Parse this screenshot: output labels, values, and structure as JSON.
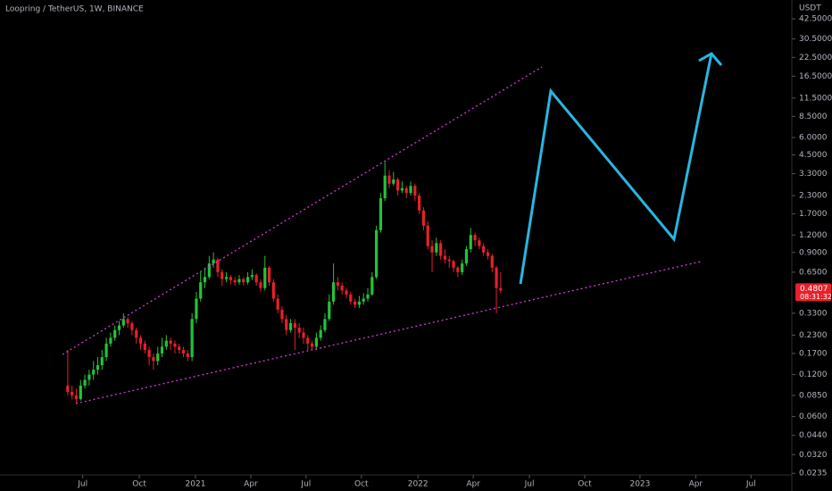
{
  "chart_data": {
    "type": "candlestick",
    "title": "Loopring / TetherUS, 1W, BINANCE",
    "y_axis_label": "USDT",
    "countdown": "08:31:32",
    "log_scale": true,
    "up_color": "#22c33a",
    "down_color": "#e8202a",
    "ylim": [
      0.0229,
      58
    ],
    "yticks": [
      {
        "value": 42.5,
        "label": "42.5000"
      },
      {
        "value": 30.5,
        "label": "30.5000"
      },
      {
        "value": 22.5,
        "label": "22.5000"
      },
      {
        "value": 16.5,
        "label": "16.5000"
      },
      {
        "value": 11.5,
        "label": "11.5000"
      },
      {
        "value": 8.5,
        "label": "8.5000"
      },
      {
        "value": 6,
        "label": "6.0000"
      },
      {
        "value": 4.5,
        "label": "4.5000"
      },
      {
        "value": 3.3,
        "label": "3.3000"
      },
      {
        "value": 2.3,
        "label": "2.3000"
      },
      {
        "value": 1.7,
        "label": "1.7000"
      },
      {
        "value": 1.2,
        "label": "1.2000"
      },
      {
        "value": 0.9,
        "label": "0.9000"
      },
      {
        "value": 0.65,
        "label": "0.6500"
      },
      {
        "value": 0.33,
        "label": "0.3300"
      },
      {
        "value": 0.23,
        "label": "0.2300"
      },
      {
        "value": 0.17,
        "label": "0.1700"
      },
      {
        "value": 0.12,
        "label": "0.1200"
      },
      {
        "value": 0.085,
        "label": "0.0850"
      },
      {
        "value": 0.06,
        "label": "0.0600"
      },
      {
        "value": 0.044,
        "label": "0.0440"
      },
      {
        "value": 0.032,
        "label": "0.0320"
      },
      {
        "value": 0.0235,
        "label": "0.0235"
      }
    ],
    "xlim": [
      -15.8,
      168.5
    ],
    "xticks": [
      {
        "value": 3.5,
        "label": "Jul"
      },
      {
        "value": 16.7,
        "label": "Oct"
      },
      {
        "value": 29.8,
        "label": "2021"
      },
      {
        "value": 42.7,
        "label": "Apr"
      },
      {
        "value": 55.6,
        "label": "Jul"
      },
      {
        "value": 68.5,
        "label": "Oct"
      },
      {
        "value": 81.7,
        "label": "2022"
      },
      {
        "value": 94.6,
        "label": "Apr"
      },
      {
        "value": 107.7,
        "label": "Jul"
      },
      {
        "value": 120.6,
        "label": "Oct"
      },
      {
        "value": 133.5,
        "label": "2023"
      },
      {
        "value": 146.5,
        "label": "Apr"
      },
      {
        "value": 159.4,
        "label": "Jul"
      }
    ],
    "open": [
      0.1,
      0.09,
      0.085,
      0.08,
      0.1,
      0.11,
      0.12,
      0.13,
      0.14,
      0.16,
      0.2,
      0.22,
      0.25,
      0.27,
      0.3,
      0.28,
      0.25,
      0.22,
      0.2,
      0.18,
      0.16,
      0.15,
      0.17,
      0.19,
      0.21,
      0.2,
      0.19,
      0.18,
      0.17,
      0.16,
      0.3,
      0.42,
      0.55,
      0.6,
      0.75,
      0.8,
      0.65,
      0.58,
      0.6,
      0.57,
      0.55,
      0.58,
      0.55,
      0.6,
      0.62,
      0.55,
      0.5,
      0.7,
      0.55,
      0.42,
      0.35,
      0.3,
      0.25,
      0.28,
      0.26,
      0.24,
      0.22,
      0.2,
      0.19,
      0.22,
      0.25,
      0.3,
      0.4,
      0.55,
      0.52,
      0.48,
      0.45,
      0.4,
      0.38,
      0.4,
      0.42,
      0.45,
      0.6,
      1.3,
      2.2,
      3.2,
      2.8,
      3.0,
      2.5,
      2.6,
      2.4,
      2.7,
      2.3,
      1.8,
      1.4,
      1.0,
      0.9,
      1.05,
      0.85,
      0.8,
      0.78,
      0.7,
      0.65,
      0.75,
      0.95,
      1.2,
      1.1,
      1.0,
      0.9,
      0.85,
      0.7,
      0.5
    ],
    "high": [
      0.18,
      0.1,
      0.095,
      0.11,
      0.12,
      0.13,
      0.15,
      0.16,
      0.18,
      0.22,
      0.24,
      0.27,
      0.29,
      0.33,
      0.31,
      0.29,
      0.26,
      0.23,
      0.21,
      0.19,
      0.17,
      0.19,
      0.22,
      0.23,
      0.22,
      0.21,
      0.2,
      0.19,
      0.18,
      0.33,
      0.47,
      0.65,
      0.7,
      0.85,
      0.9,
      0.82,
      0.68,
      0.65,
      0.62,
      0.6,
      0.62,
      0.6,
      0.65,
      0.68,
      0.64,
      0.58,
      0.85,
      0.72,
      0.58,
      0.45,
      0.37,
      0.32,
      0.3,
      0.3,
      0.28,
      0.26,
      0.23,
      0.21,
      0.24,
      0.27,
      0.33,
      0.45,
      0.75,
      0.6,
      0.55,
      0.5,
      0.47,
      0.42,
      0.44,
      0.46,
      0.5,
      0.65,
      1.4,
      2.4,
      4.0,
      3.5,
      3.4,
      3.1,
      2.9,
      2.7,
      2.9,
      2.8,
      2.4,
      1.9,
      1.5,
      1.1,
      1.15,
      1.1,
      0.95,
      0.85,
      0.8,
      0.72,
      0.8,
      1.0,
      1.35,
      1.25,
      1.15,
      1.05,
      0.95,
      0.88,
      0.72,
      0.65
    ],
    "low": [
      0.085,
      0.08,
      0.075,
      0.078,
      0.095,
      0.1,
      0.11,
      0.12,
      0.13,
      0.15,
      0.19,
      0.21,
      0.23,
      0.26,
      0.26,
      0.23,
      0.2,
      0.18,
      0.17,
      0.14,
      0.13,
      0.14,
      0.16,
      0.18,
      0.18,
      0.17,
      0.17,
      0.16,
      0.15,
      0.15,
      0.28,
      0.4,
      0.5,
      0.58,
      0.7,
      0.6,
      0.52,
      0.55,
      0.53,
      0.52,
      0.53,
      0.52,
      0.53,
      0.57,
      0.52,
      0.47,
      0.48,
      0.52,
      0.4,
      0.33,
      0.28,
      0.23,
      0.24,
      0.18,
      0.22,
      0.2,
      0.18,
      0.18,
      0.18,
      0.21,
      0.24,
      0.29,
      0.38,
      0.48,
      0.45,
      0.42,
      0.38,
      0.36,
      0.36,
      0.38,
      0.4,
      0.44,
      0.58,
      1.25,
      2.1,
      2.6,
      2.7,
      2.3,
      2.4,
      2.2,
      2.3,
      2.1,
      1.7,
      1.3,
      0.95,
      0.65,
      0.85,
      0.8,
      0.75,
      0.7,
      0.65,
      0.6,
      0.62,
      0.72,
      0.9,
      1.0,
      0.95,
      0.85,
      0.8,
      0.65,
      0.33,
      0.46
    ],
    "close": [
      0.09,
      0.085,
      0.08,
      0.1,
      0.11,
      0.12,
      0.13,
      0.14,
      0.16,
      0.2,
      0.22,
      0.25,
      0.27,
      0.3,
      0.28,
      0.25,
      0.22,
      0.2,
      0.18,
      0.16,
      0.15,
      0.17,
      0.19,
      0.21,
      0.2,
      0.19,
      0.18,
      0.17,
      0.16,
      0.3,
      0.42,
      0.55,
      0.6,
      0.75,
      0.8,
      0.65,
      0.58,
      0.6,
      0.57,
      0.55,
      0.58,
      0.55,
      0.6,
      0.62,
      0.55,
      0.5,
      0.7,
      0.55,
      0.42,
      0.35,
      0.3,
      0.25,
      0.28,
      0.26,
      0.24,
      0.22,
      0.2,
      0.19,
      0.22,
      0.25,
      0.3,
      0.4,
      0.55,
      0.52,
      0.48,
      0.45,
      0.4,
      0.38,
      0.4,
      0.42,
      0.45,
      0.6,
      1.3,
      2.2,
      3.2,
      2.8,
      3.0,
      2.5,
      2.6,
      2.4,
      2.7,
      2.3,
      1.8,
      1.4,
      1.0,
      0.9,
      1.05,
      0.85,
      0.8,
      0.78,
      0.7,
      0.65,
      0.75,
      0.95,
      1.2,
      1.1,
      1.0,
      0.9,
      0.85,
      0.7,
      0.5,
      0.4807
    ]
  }
}
